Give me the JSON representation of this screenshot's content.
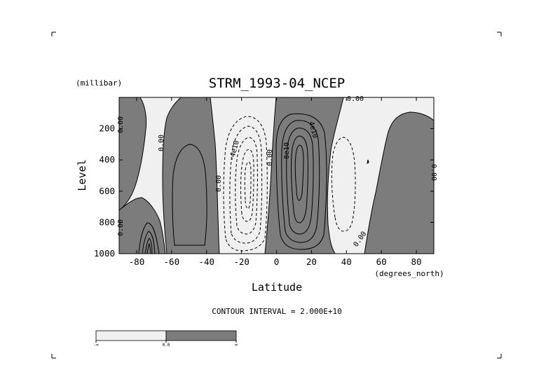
{
  "chart_data": {
    "type": "contour",
    "title": "STRM_1993-04_NCEP",
    "xlabel": "Latitude",
    "x_units": "(degrees_north)",
    "ylabel": "Level",
    "y_units": "(millibar)",
    "x_ticks": [
      -80,
      -60,
      -40,
      -20,
      0,
      20,
      40,
      60,
      80
    ],
    "y_ticks": [
      200,
      400,
      600,
      800,
      1000
    ],
    "xlim": [
      -90,
      90
    ],
    "ylim": [
      1000,
      0
    ],
    "contour_interval_text": "CONTOUR INTERVAL = 2.000E+10",
    "contour_labels": [
      "0.00",
      "-4e10",
      "4e10",
      "8e10"
    ],
    "shading": {
      "below_zero_color": "#f0f0f0",
      "above_zero_color": "#7c7c7c",
      "colorbar_labels": [
        "-∞",
        "0.0",
        "∞"
      ]
    }
  }
}
